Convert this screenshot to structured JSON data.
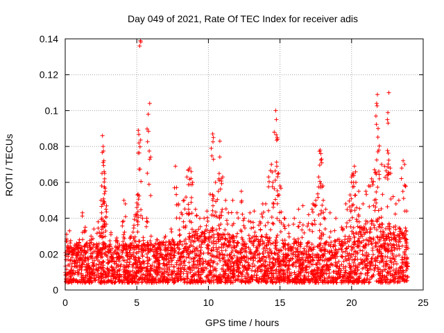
{
  "chart_data": {
    "type": "scatter",
    "title": "Day 049 of 2021, Rate Of TEC Index for receiver adis",
    "xlabel": "GPS time / hours",
    "ylabel": "ROTI / TECUs",
    "xlim": [
      0,
      25
    ],
    "ylim": [
      0,
      0.14
    ],
    "xticks": [
      0,
      5,
      10,
      15,
      20,
      25
    ],
    "xtick_labels": [
      "0",
      "5",
      "10",
      "15",
      "20",
      "25"
    ],
    "yticks": [
      0,
      0.02,
      0.04,
      0.06,
      0.08,
      0.1,
      0.12,
      0.14
    ],
    "ytick_labels": [
      "0",
      "0.02",
      "0.04",
      "0.06",
      "0.08",
      "0.1",
      "0.12",
      "0.14"
    ],
    "grid": true,
    "marker": "+",
    "marker_color": "#ff0000",
    "series": [
      {
        "name": "ROTI",
        "points": [
          [
            0.1,
            0.031
          ],
          [
            0.2,
            0.024
          ],
          [
            0.3,
            0.033
          ],
          [
            0.5,
            0.022
          ],
          [
            0.8,
            0.026
          ],
          [
            1.0,
            0.028
          ],
          [
            1.2,
            0.043
          ],
          [
            1.4,
            0.035
          ],
          [
            1.8,
            0.03
          ],
          [
            2.0,
            0.034
          ],
          [
            2.3,
            0.038
          ],
          [
            2.5,
            0.05
          ],
          [
            2.55,
            0.058
          ],
          [
            2.6,
            0.086
          ],
          [
            2.65,
            0.08
          ],
          [
            2.7,
            0.072
          ],
          [
            2.72,
            0.066
          ],
          [
            2.75,
            0.062
          ],
          [
            2.8,
            0.055
          ],
          [
            2.85,
            0.045
          ],
          [
            3.2,
            0.032
          ],
          [
            3.6,
            0.029
          ],
          [
            4.0,
            0.038
          ],
          [
            4.1,
            0.05
          ],
          [
            4.2,
            0.048
          ],
          [
            4.6,
            0.03
          ],
          [
            4.8,
            0.036
          ],
          [
            4.9,
            0.042
          ],
          [
            5.0,
            0.046
          ],
          [
            5.05,
            0.053
          ],
          [
            5.1,
            0.089
          ],
          [
            5.15,
            0.082
          ],
          [
            5.2,
            0.136
          ],
          [
            5.25,
            0.139
          ],
          [
            5.4,
            0.04
          ],
          [
            5.7,
            0.04
          ],
          [
            5.8,
            0.098
          ],
          [
            5.9,
            0.104
          ],
          [
            6.0,
            0.03
          ],
          [
            6.4,
            0.028
          ],
          [
            7.0,
            0.03
          ],
          [
            7.4,
            0.034
          ],
          [
            7.7,
            0.069
          ],
          [
            7.9,
            0.048
          ],
          [
            8.1,
            0.043
          ],
          [
            8.3,
            0.05
          ],
          [
            8.5,
            0.063
          ],
          [
            8.6,
            0.067
          ],
          [
            8.7,
            0.068
          ],
          [
            8.8,
            0.066
          ],
          [
            8.9,
            0.06
          ],
          [
            9.1,
            0.045
          ],
          [
            9.4,
            0.04
          ],
          [
            9.7,
            0.04
          ],
          [
            9.9,
            0.044
          ],
          [
            10.2,
            0.079
          ],
          [
            10.3,
            0.087
          ],
          [
            10.35,
            0.085
          ],
          [
            10.5,
            0.06
          ],
          [
            10.7,
            0.055
          ],
          [
            10.8,
            0.083
          ],
          [
            10.9,
            0.062
          ],
          [
            11.0,
            0.063
          ],
          [
            11.2,
            0.05
          ],
          [
            11.4,
            0.043
          ],
          [
            11.7,
            0.05
          ],
          [
            12.0,
            0.043
          ],
          [
            12.3,
            0.055
          ],
          [
            12.5,
            0.04
          ],
          [
            12.9,
            0.043
          ],
          [
            13.2,
            0.044
          ],
          [
            13.6,
            0.038
          ],
          [
            13.8,
            0.048
          ],
          [
            14.0,
            0.048
          ],
          [
            14.2,
            0.063
          ],
          [
            14.4,
            0.07
          ],
          [
            14.5,
            0.06
          ],
          [
            14.6,
            0.088
          ],
          [
            14.7,
            0.1
          ],
          [
            14.75,
            0.095
          ],
          [
            14.8,
            0.085
          ],
          [
            14.9,
            0.065
          ],
          [
            15.0,
            0.058
          ],
          [
            15.3,
            0.04
          ],
          [
            15.6,
            0.036
          ],
          [
            16.0,
            0.04
          ],
          [
            16.3,
            0.045
          ],
          [
            16.6,
            0.047
          ],
          [
            17.0,
            0.042
          ],
          [
            17.3,
            0.048
          ],
          [
            17.5,
            0.05
          ],
          [
            17.7,
            0.063
          ],
          [
            17.8,
            0.078
          ],
          [
            17.85,
            0.076
          ],
          [
            17.9,
            0.073
          ],
          [
            18.0,
            0.058
          ],
          [
            18.2,
            0.045
          ],
          [
            18.5,
            0.043
          ],
          [
            18.9,
            0.04
          ],
          [
            19.3,
            0.035
          ],
          [
            19.6,
            0.048
          ],
          [
            19.9,
            0.053
          ],
          [
            20.0,
            0.063
          ],
          [
            20.1,
            0.065
          ],
          [
            20.2,
            0.069
          ],
          [
            20.3,
            0.06
          ],
          [
            20.5,
            0.055
          ],
          [
            20.8,
            0.048
          ],
          [
            21.0,
            0.055
          ],
          [
            21.2,
            0.058
          ],
          [
            21.4,
            0.062
          ],
          [
            21.6,
            0.067
          ],
          [
            21.7,
            0.097
          ],
          [
            21.75,
            0.104
          ],
          [
            21.8,
            0.109
          ],
          [
            21.85,
            0.09
          ],
          [
            21.9,
            0.078
          ],
          [
            22.1,
            0.07
          ],
          [
            22.3,
            0.069
          ],
          [
            22.5,
            0.095
          ],
          [
            22.55,
            0.093
          ],
          [
            22.6,
            0.11
          ],
          [
            22.7,
            0.068
          ],
          [
            22.9,
            0.052
          ],
          [
            23.1,
            0.048
          ],
          [
            23.3,
            0.05
          ],
          [
            23.5,
            0.068
          ],
          [
            23.6,
            0.072
          ],
          [
            23.7,
            0.07
          ],
          [
            23.85,
            0.044
          ]
        ],
        "baseline_band": {
          "description": "dense background cloud of points",
          "x_range": [
            0,
            23.95
          ],
          "envelope": [
            [
              0,
              0.004,
              0.025
            ],
            [
              2,
              0.004,
              0.027
            ],
            [
              4,
              0.004,
              0.025
            ],
            [
              6,
              0.004,
              0.026
            ],
            [
              8,
              0.004,
              0.028
            ],
            [
              10,
              0.004,
              0.034
            ],
            [
              12,
              0.004,
              0.03
            ],
            [
              14,
              0.004,
              0.03
            ],
            [
              16,
              0.004,
              0.027
            ],
            [
              18,
              0.004,
              0.026
            ],
            [
              20,
              0.004,
              0.032
            ],
            [
              21.5,
              0.004,
              0.04
            ],
            [
              23,
              0.004,
              0.036
            ],
            [
              23.95,
              0.005,
              0.032
            ]
          ],
          "count": 3000
        }
      }
    ]
  }
}
